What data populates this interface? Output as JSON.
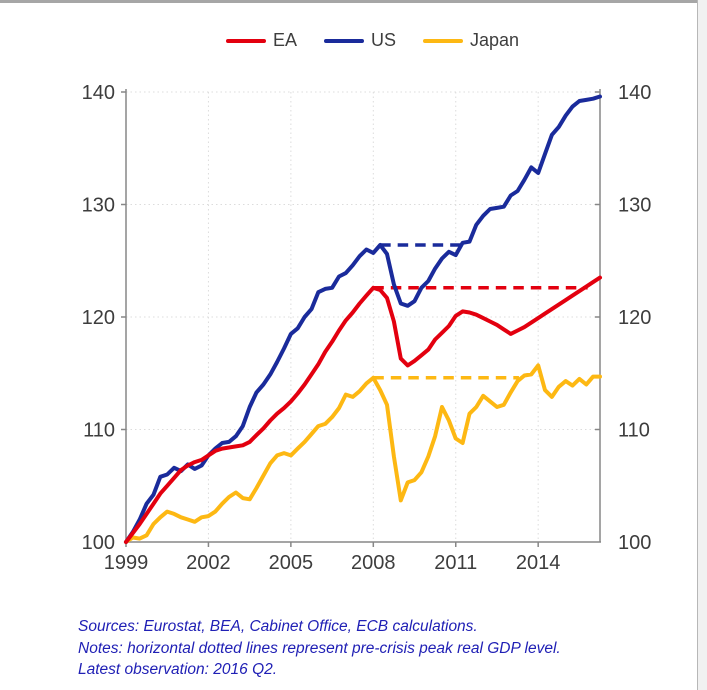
{
  "legend": {
    "items": [
      {
        "id": "ea",
        "label": "EA",
        "color": "#e3000f"
      },
      {
        "id": "us",
        "label": "US",
        "color": "#1a2b9b"
      },
      {
        "id": "japan",
        "label": "Japan",
        "color": "#fdb813"
      }
    ]
  },
  "footer": {
    "text_color": "#2020b5",
    "lines": [
      "Sources: Eurostat, BEA, Cabinet Office, ECB calculations.",
      "Notes: horizontal dotted lines represent pre-crisis peak real GDP level.",
      "Latest observation: 2016 Q2."
    ]
  },
  "chart_data": {
    "type": "line",
    "title": "",
    "xlabel": "",
    "ylabel": "",
    "x_domain": [
      1999,
      2016.25
    ],
    "ylim": [
      100,
      140
    ],
    "xticks": [
      1999,
      2002,
      2005,
      2008,
      2011,
      2014
    ],
    "yticks": [
      100,
      110,
      120,
      130,
      140
    ],
    "grid": true,
    "dual_y_axis_labels": true,
    "legend_position": "top-center",
    "axis_color": "#878787",
    "grid_color": "#dcdcdc",
    "tick_label_color": "#3d3d3d",
    "x_step": 0.25,
    "series": [
      {
        "name": "EA",
        "color": "#e3000f",
        "x_start": 1999.0,
        "values": [
          100.0,
          100.8,
          101.6,
          102.5,
          103.4,
          104.3,
          105.0,
          105.7,
          106.4,
          106.8,
          107.1,
          107.3,
          107.7,
          108.1,
          108.3,
          108.4,
          108.5,
          108.6,
          108.9,
          109.5,
          110.1,
          110.8,
          111.4,
          111.9,
          112.5,
          113.2,
          114.0,
          114.9,
          115.8,
          116.9,
          117.8,
          118.8,
          119.7,
          120.4,
          121.2,
          121.9,
          122.6,
          122.4,
          121.7,
          119.6,
          116.3,
          115.7,
          116.1,
          116.6,
          117.1,
          118.0,
          118.6,
          119.2,
          120.1,
          120.5,
          120.4,
          120.2,
          119.9,
          119.6,
          119.3,
          118.9,
          118.5,
          118.8,
          119.1,
          119.5,
          119.9,
          120.3,
          120.7,
          121.1,
          121.5,
          121.9,
          122.3,
          122.7,
          123.1,
          123.5
        ]
      },
      {
        "name": "US",
        "color": "#1a2b9b",
        "x_start": 1999.0,
        "values": [
          100.0,
          100.9,
          102.0,
          103.4,
          104.2,
          105.8,
          106.0,
          106.6,
          106.3,
          106.9,
          106.5,
          106.8,
          107.7,
          108.3,
          108.8,
          108.9,
          109.4,
          110.3,
          112.0,
          113.3,
          114.0,
          114.9,
          116.0,
          117.2,
          118.5,
          119.0,
          120.0,
          120.7,
          122.2,
          122.5,
          122.6,
          123.6,
          123.9,
          124.6,
          125.4,
          126.0,
          125.7,
          126.4,
          125.6,
          122.9,
          121.2,
          121.0,
          121.4,
          122.6,
          123.2,
          124.3,
          125.2,
          125.8,
          125.5,
          126.6,
          126.7,
          128.2,
          129.0,
          129.6,
          129.7,
          129.8,
          130.8,
          131.2,
          132.2,
          133.3,
          132.8,
          134.5,
          136.2,
          136.9,
          137.9,
          138.7,
          139.2,
          139.3,
          139.4,
          139.6
        ]
      },
      {
        "name": "Japan",
        "color": "#fdb813",
        "x_start": 1999.0,
        "values": [
          100.0,
          100.4,
          100.3,
          100.6,
          101.6,
          102.2,
          102.7,
          102.5,
          102.2,
          102.0,
          101.8,
          102.2,
          102.3,
          102.7,
          103.4,
          104.0,
          104.4,
          103.9,
          103.8,
          104.8,
          105.9,
          107.0,
          107.7,
          107.9,
          107.7,
          108.3,
          108.9,
          109.6,
          110.3,
          110.5,
          111.1,
          111.9,
          113.1,
          112.9,
          113.4,
          114.1,
          114.6,
          113.5,
          112.2,
          107.6,
          103.7,
          105.3,
          105.5,
          106.2,
          107.6,
          109.4,
          112.0,
          110.8,
          109.2,
          108.8,
          111.4,
          112.0,
          113.0,
          112.5,
          112.0,
          112.2,
          113.3,
          114.3,
          114.8,
          114.9,
          115.7,
          113.5,
          112.9,
          113.8,
          114.3,
          113.9,
          114.5,
          114.0,
          114.7,
          114.7
        ]
      }
    ],
    "peak_lines": [
      {
        "series": "US",
        "value": 126.4,
        "x_from": 2008.25,
        "x_to": 2011.2
      },
      {
        "series": "EA",
        "value": 122.6,
        "x_from": 2008.0,
        "x_to": 2015.8
      },
      {
        "series": "Japan",
        "value": 114.6,
        "x_from": 2008.0,
        "x_to": 2013.3
      }
    ]
  }
}
